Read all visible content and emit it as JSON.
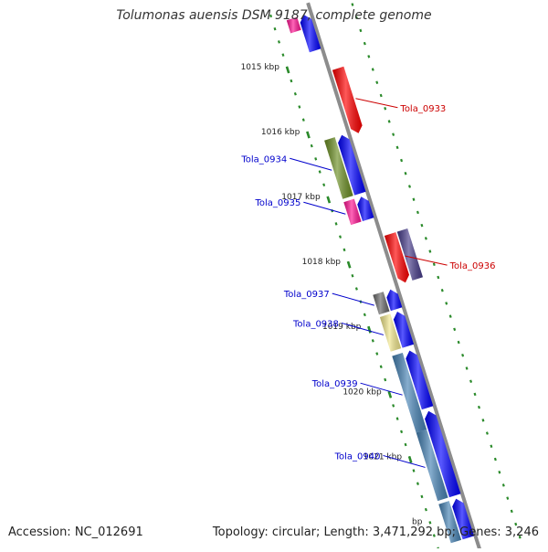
{
  "title": "Tolumonas auensis DSM 9187, complete genome",
  "footer": {
    "accession": "Accession: NC_012691",
    "summary": "Topology: circular; Length: 3,471,292 bp; Genes: 3,246"
  },
  "colors": {
    "backbone": "#8c8c8c",
    "tick": "#2a8a2a",
    "label_forward": "#0000cc",
    "label_reverse": "#cc0000"
  },
  "ruler": {
    "unit": "kbp",
    "ticks": [
      "1015 kbp",
      "1016 kbp",
      "1017 kbp",
      "1018 kbp",
      "1019 kbp",
      "1020 kbp",
      "1021 kbp"
    ],
    "partial_tick": "bp"
  },
  "features": [
    {
      "label": "",
      "color": "#ff1493",
      "track": "forward-gene",
      "start_kb": 1014.35,
      "end_kb": 1014.55
    },
    {
      "label": "",
      "color": "#0000ff",
      "track": "forward-cds",
      "start_kb": 1014.35,
      "end_kb": 1014.9
    },
    {
      "label": "Tola_0933",
      "color": "#ff0000",
      "track": "reverse-cds",
      "start_kb": 1015.25,
      "end_kb": 1016.25
    },
    {
      "label": "Tola_0934",
      "color": "#6b8e23",
      "track": "forward-gene",
      "start_kb": 1016.2,
      "end_kb": 1017.1
    },
    {
      "label": "",
      "color": "#0000ff",
      "track": "forward-cds",
      "start_kb": 1016.2,
      "end_kb": 1017.1
    },
    {
      "label": "Tola_0935",
      "color": "#ff1493",
      "track": "forward-gene",
      "start_kb": 1017.15,
      "end_kb": 1017.5
    },
    {
      "label": "",
      "color": "#0000ff",
      "track": "forward-cds",
      "start_kb": 1017.15,
      "end_kb": 1017.5
    },
    {
      "label": "Tola_0936",
      "color": "#ff0000",
      "track": "reverse-cds",
      "start_kb": 1017.8,
      "end_kb": 1018.55
    },
    {
      "label": "",
      "color": "#483d8b",
      "track": "reverse-gene",
      "start_kb": 1017.8,
      "end_kb": 1018.55
    },
    {
      "label": "Tola_0937",
      "color": "#696969",
      "track": "forward-gene",
      "start_kb": 1018.58,
      "end_kb": 1018.88
    },
    {
      "label": "",
      "color": "#0000ff",
      "track": "forward-cds",
      "start_kb": 1018.58,
      "end_kb": 1018.88
    },
    {
      "label": "Tola_0938",
      "color": "#f0e68c",
      "track": "forward-gene",
      "start_kb": 1018.92,
      "end_kb": 1019.45
    },
    {
      "label": "",
      "color": "#0000ff",
      "track": "forward-cds",
      "start_kb": 1018.92,
      "end_kb": 1019.45
    },
    {
      "label": "Tola_0939",
      "color": "#4682b4",
      "track": "forward-gene",
      "start_kb": 1019.52,
      "end_kb": 1020.7
    },
    {
      "label": "",
      "color": "#0000ff",
      "track": "forward-cds",
      "start_kb": 1019.52,
      "end_kb": 1020.4
    },
    {
      "label": "Tola_0940",
      "color": "#4682b4",
      "track": "forward-gene",
      "start_kb": 1020.7,
      "end_kb": 1021.75
    },
    {
      "label": "",
      "color": "#0000ff",
      "track": "forward-cds",
      "start_kb": 1020.45,
      "end_kb": 1021.75
    },
    {
      "label": "",
      "color": "#4682b4",
      "track": "forward-gene",
      "start_kb": 1021.8,
      "end_kb": 1022.4
    },
    {
      "label": "",
      "color": "#0000ff",
      "track": "forward-cds",
      "start_kb": 1021.8,
      "end_kb": 1022.4
    }
  ]
}
